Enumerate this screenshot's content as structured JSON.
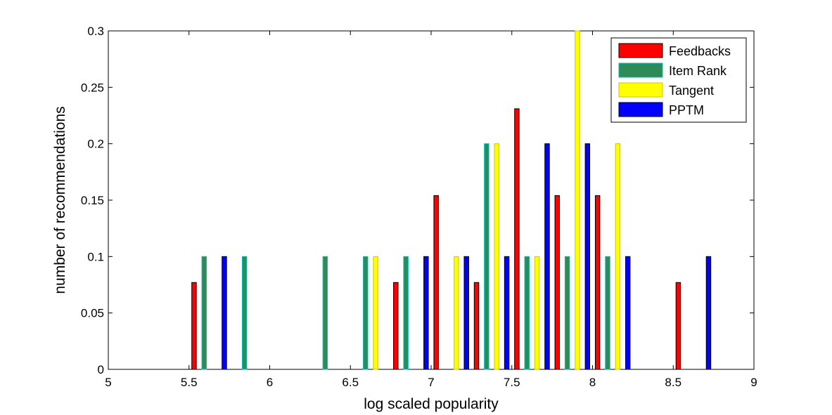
{
  "chart_data": {
    "type": "bar",
    "xlabel": "log scaled popularity",
    "ylabel": "number of recommendations",
    "xlim": [
      5,
      9
    ],
    "ylim": [
      0,
      0.3
    ],
    "x_ticks": [
      "5",
      "5.5",
      "6",
      "6.5",
      "7",
      "7.5",
      "8",
      "8.5",
      "9"
    ],
    "y_ticks": [
      "0",
      "0.05",
      "0.1",
      "0.15",
      "0.2",
      "0.25",
      "0.3"
    ],
    "legend_position": "top-right",
    "grid": false,
    "bin_centers": [
      5.125,
      5.375,
      5.625,
      5.875,
      6.125,
      6.375,
      6.625,
      6.875,
      7.125,
      7.375,
      7.625,
      7.875,
      8.125,
      8.375,
      8.625,
      8.875
    ],
    "series": [
      {
        "name": "Feedbacks",
        "color": "#ff0000",
        "border": "#000000",
        "values": [
          0,
          0,
          0.077,
          0,
          0,
          0,
          0,
          0.077,
          0.154,
          0.077,
          0.231,
          0.154,
          0.154,
          0,
          0.077,
          0
        ]
      },
      {
        "name": "Item Rank",
        "color": "#2e8b57",
        "border": "#00c0c0",
        "values": [
          0,
          0,
          0.1,
          0.1,
          0,
          0.1,
          0.1,
          0.1,
          0,
          0.2,
          0.1,
          0.1,
          0.1,
          0,
          0,
          0
        ]
      },
      {
        "name": "Tangent",
        "color": "#ffff00",
        "border": "#c8c800",
        "values": [
          0,
          0,
          0,
          0,
          0,
          0,
          0.1,
          0,
          0.1,
          0.2,
          0.1,
          0.3,
          0.2,
          0,
          0,
          0
        ]
      },
      {
        "name": "PPTM",
        "color": "#0000ff",
        "border": "#000000",
        "values": [
          0,
          0,
          0.1,
          0,
          0,
          0,
          0,
          0.1,
          0.1,
          0.1,
          0.2,
          0.2,
          0.1,
          0,
          0.1,
          0
        ]
      }
    ]
  }
}
